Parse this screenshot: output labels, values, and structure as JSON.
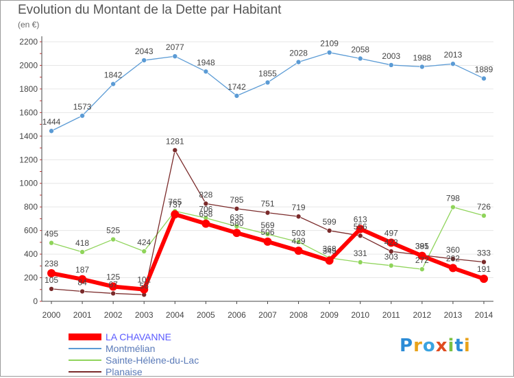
{
  "title": "Evolution du Montant de la Dette par Habitant",
  "subtitle": "(en €)",
  "logo": {
    "text": "Proxiti"
  },
  "chart_data": {
    "type": "line",
    "title": "Evolution du Montant de la Dette par Habitant",
    "subtitle": "(en €)",
    "xlabel": "",
    "ylabel": "",
    "ylim": [
      0,
      2200
    ],
    "yticks": [
      0,
      200,
      400,
      600,
      800,
      1000,
      1200,
      1400,
      1600,
      1800,
      2000,
      2200
    ],
    "grid": "horizontal",
    "legend_position": "bottom-left",
    "categories": [
      "2000",
      "2001",
      "2002",
      "2003",
      "2004",
      "2005",
      "2006",
      "2007",
      "2008",
      "2009",
      "2010",
      "2011",
      "2012",
      "2013",
      "2014"
    ],
    "series": [
      {
        "name": "LA CHAVANNE",
        "color": "#ff0000",
        "values": [
          238,
          187,
          125,
          101,
          737,
          658,
          580,
          506,
          429,
          345,
          613,
          497,
          385,
          282,
          191
        ]
      },
      {
        "name": "Montmélian",
        "color": "#5b9bd5",
        "values": [
          1444,
          1573,
          1842,
          2043,
          2077,
          1948,
          1742,
          1855,
          2028,
          2109,
          2058,
          2003,
          1988,
          2013,
          1889
        ]
      },
      {
        "name": "Sainte-Hélène-du-Lac",
        "color": "#8fd45a",
        "values": [
          495,
          418,
          525,
          424,
          765,
          706,
          635,
          569,
          503,
          368,
          331,
          303,
          272,
          798,
          726
        ]
      },
      {
        "name": "Planaise",
        "color": "#7a2a2a",
        "values": [
          105,
          84,
          67,
          56,
          1281,
          828,
          785,
          751,
          719,
          599,
          556,
          423,
          391,
          360,
          333
        ]
      }
    ]
  }
}
